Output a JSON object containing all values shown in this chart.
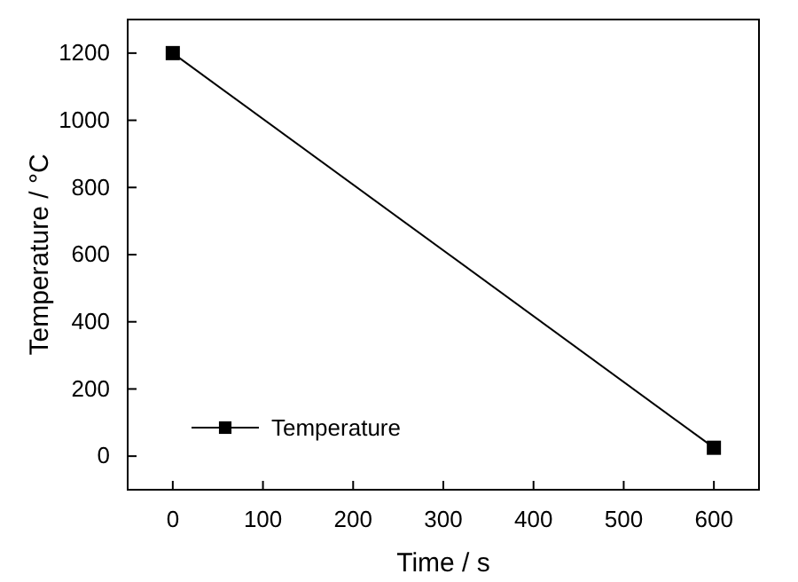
{
  "chart_data": {
    "type": "line",
    "xlabel": "Time / s",
    "ylabel": "Temperature / °C",
    "x": [
      0,
      600
    ],
    "series": [
      {
        "name": "Temperature",
        "color": "#000000",
        "values": [
          1200,
          25
        ]
      }
    ],
    "xlim": [
      -50,
      650
    ],
    "xticks": [
      0,
      100,
      200,
      300,
      400,
      500,
      600
    ],
    "ylim": [
      -100,
      1300
    ],
    "yticks": [
      0,
      200,
      400,
      600,
      800,
      1000,
      1200
    ],
    "grid": false,
    "legend": "bottom left",
    "marker": "square",
    "line_style": "solid"
  }
}
